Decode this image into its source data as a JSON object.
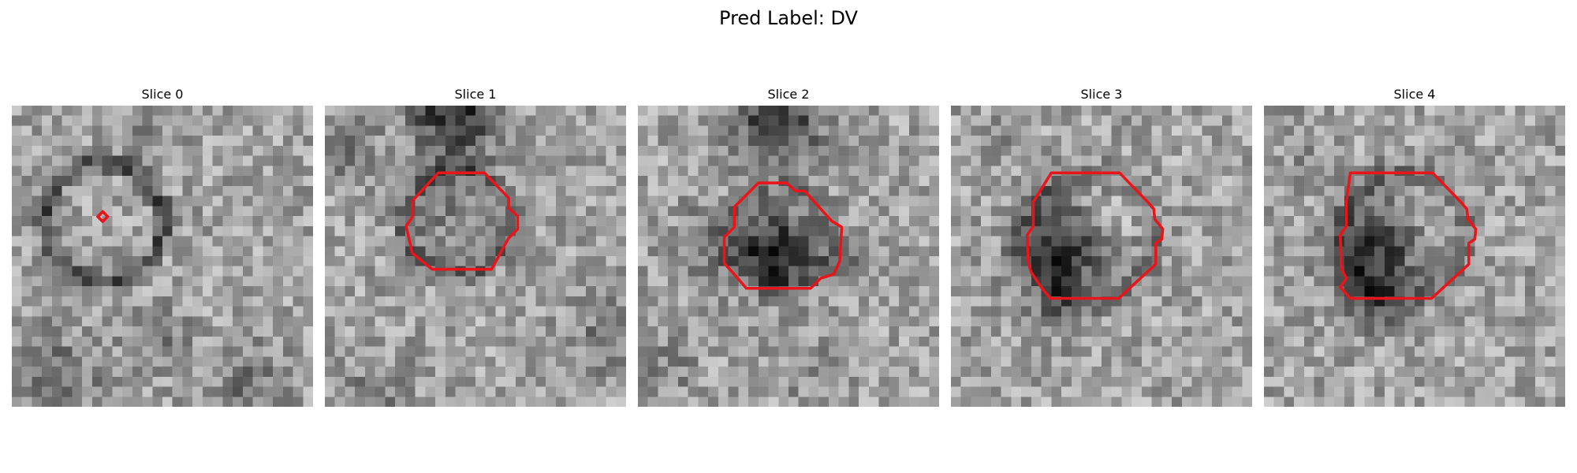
{
  "figure": {
    "title": "Pred Label: DV"
  },
  "panels": [
    {
      "title": "Slice 0"
    },
    {
      "title": "Slice 1"
    },
    {
      "title": "Slice 2"
    },
    {
      "title": "Slice 3"
    },
    {
      "title": "Slice 4"
    }
  ],
  "colors": {
    "contour": "#e8151b",
    "background": "#ffffff"
  }
}
